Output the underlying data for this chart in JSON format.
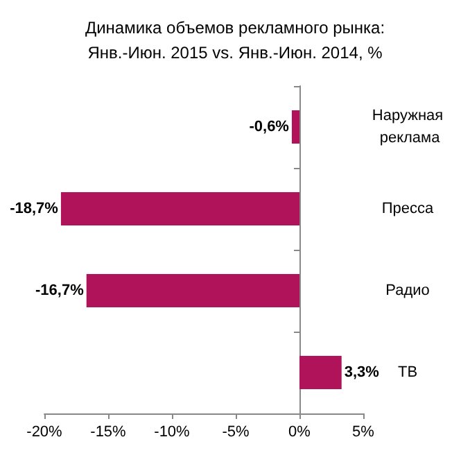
{
  "chart_data": {
    "type": "bar",
    "orientation": "horizontal",
    "title": "Динамика объемов рекламного рынка:\nЯнв.-Июн. 2015 vs. Янв.-Июн. 2014, %",
    "categories": [
      "Наружная реклама",
      "Пресса",
      "Радио",
      "ТВ"
    ],
    "values": [
      -0.6,
      -18.7,
      -16.7,
      3.3
    ],
    "value_labels": [
      "-0,6%",
      "-18,7%",
      "-16,7%",
      "3,3%"
    ],
    "color": "#b0135a",
    "xlim": [
      -20,
      5
    ],
    "xticks": [
      {
        "value": -20,
        "label": "-20%"
      },
      {
        "value": -15,
        "label": "-15%"
      },
      {
        "value": -10,
        "label": "-10%"
      },
      {
        "value": -5,
        "label": "-5%"
      },
      {
        "value": 0,
        "label": "0%"
      },
      {
        "value": 5,
        "label": "5%"
      }
    ],
    "tick_labels": true
  }
}
